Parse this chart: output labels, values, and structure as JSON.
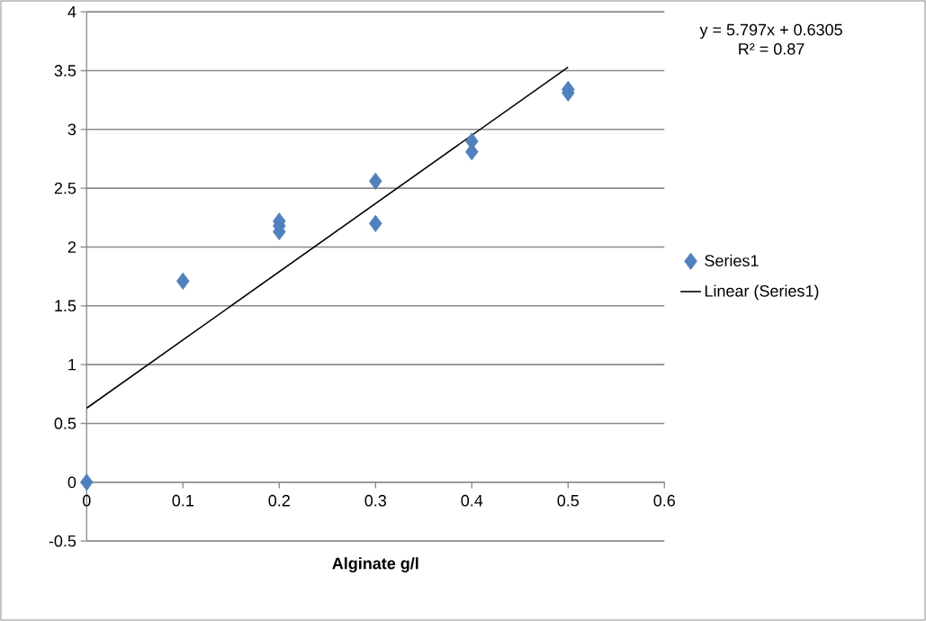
{
  "chart_data": {
    "type": "scatter",
    "xlabel": "Alginate g/l",
    "xlim": [
      0,
      0.6
    ],
    "ylim": [
      -0.5,
      4
    ],
    "xticks": [
      0,
      0.1,
      0.2,
      0.3,
      0.4,
      0.5,
      0.6
    ],
    "yticks": [
      -0.5,
      0,
      0.5,
      1,
      1.5,
      2,
      2.5,
      3,
      3.5,
      4
    ],
    "grid": "y",
    "legend": "right",
    "annotations": [
      "y = 5.797x + 0.6305",
      "R² = 0.87"
    ],
    "series": [
      {
        "name": "Series1",
        "marker": "diamond",
        "color": "#4f81bd",
        "x": [
          0,
          0.1,
          0.2,
          0.2,
          0.2,
          0.3,
          0.3,
          0.4,
          0.4,
          0.5,
          0.5
        ],
        "values": [
          0,
          1.71,
          2.22,
          2.18,
          2.13,
          2.56,
          2.2,
          2.9,
          2.81,
          3.34,
          3.31
        ]
      },
      {
        "name": "Linear (Series1)",
        "type": "line",
        "color": "#000000",
        "line_style": "solid",
        "x": [
          0,
          0.5
        ],
        "values": [
          0.63,
          3.53
        ]
      }
    ]
  }
}
